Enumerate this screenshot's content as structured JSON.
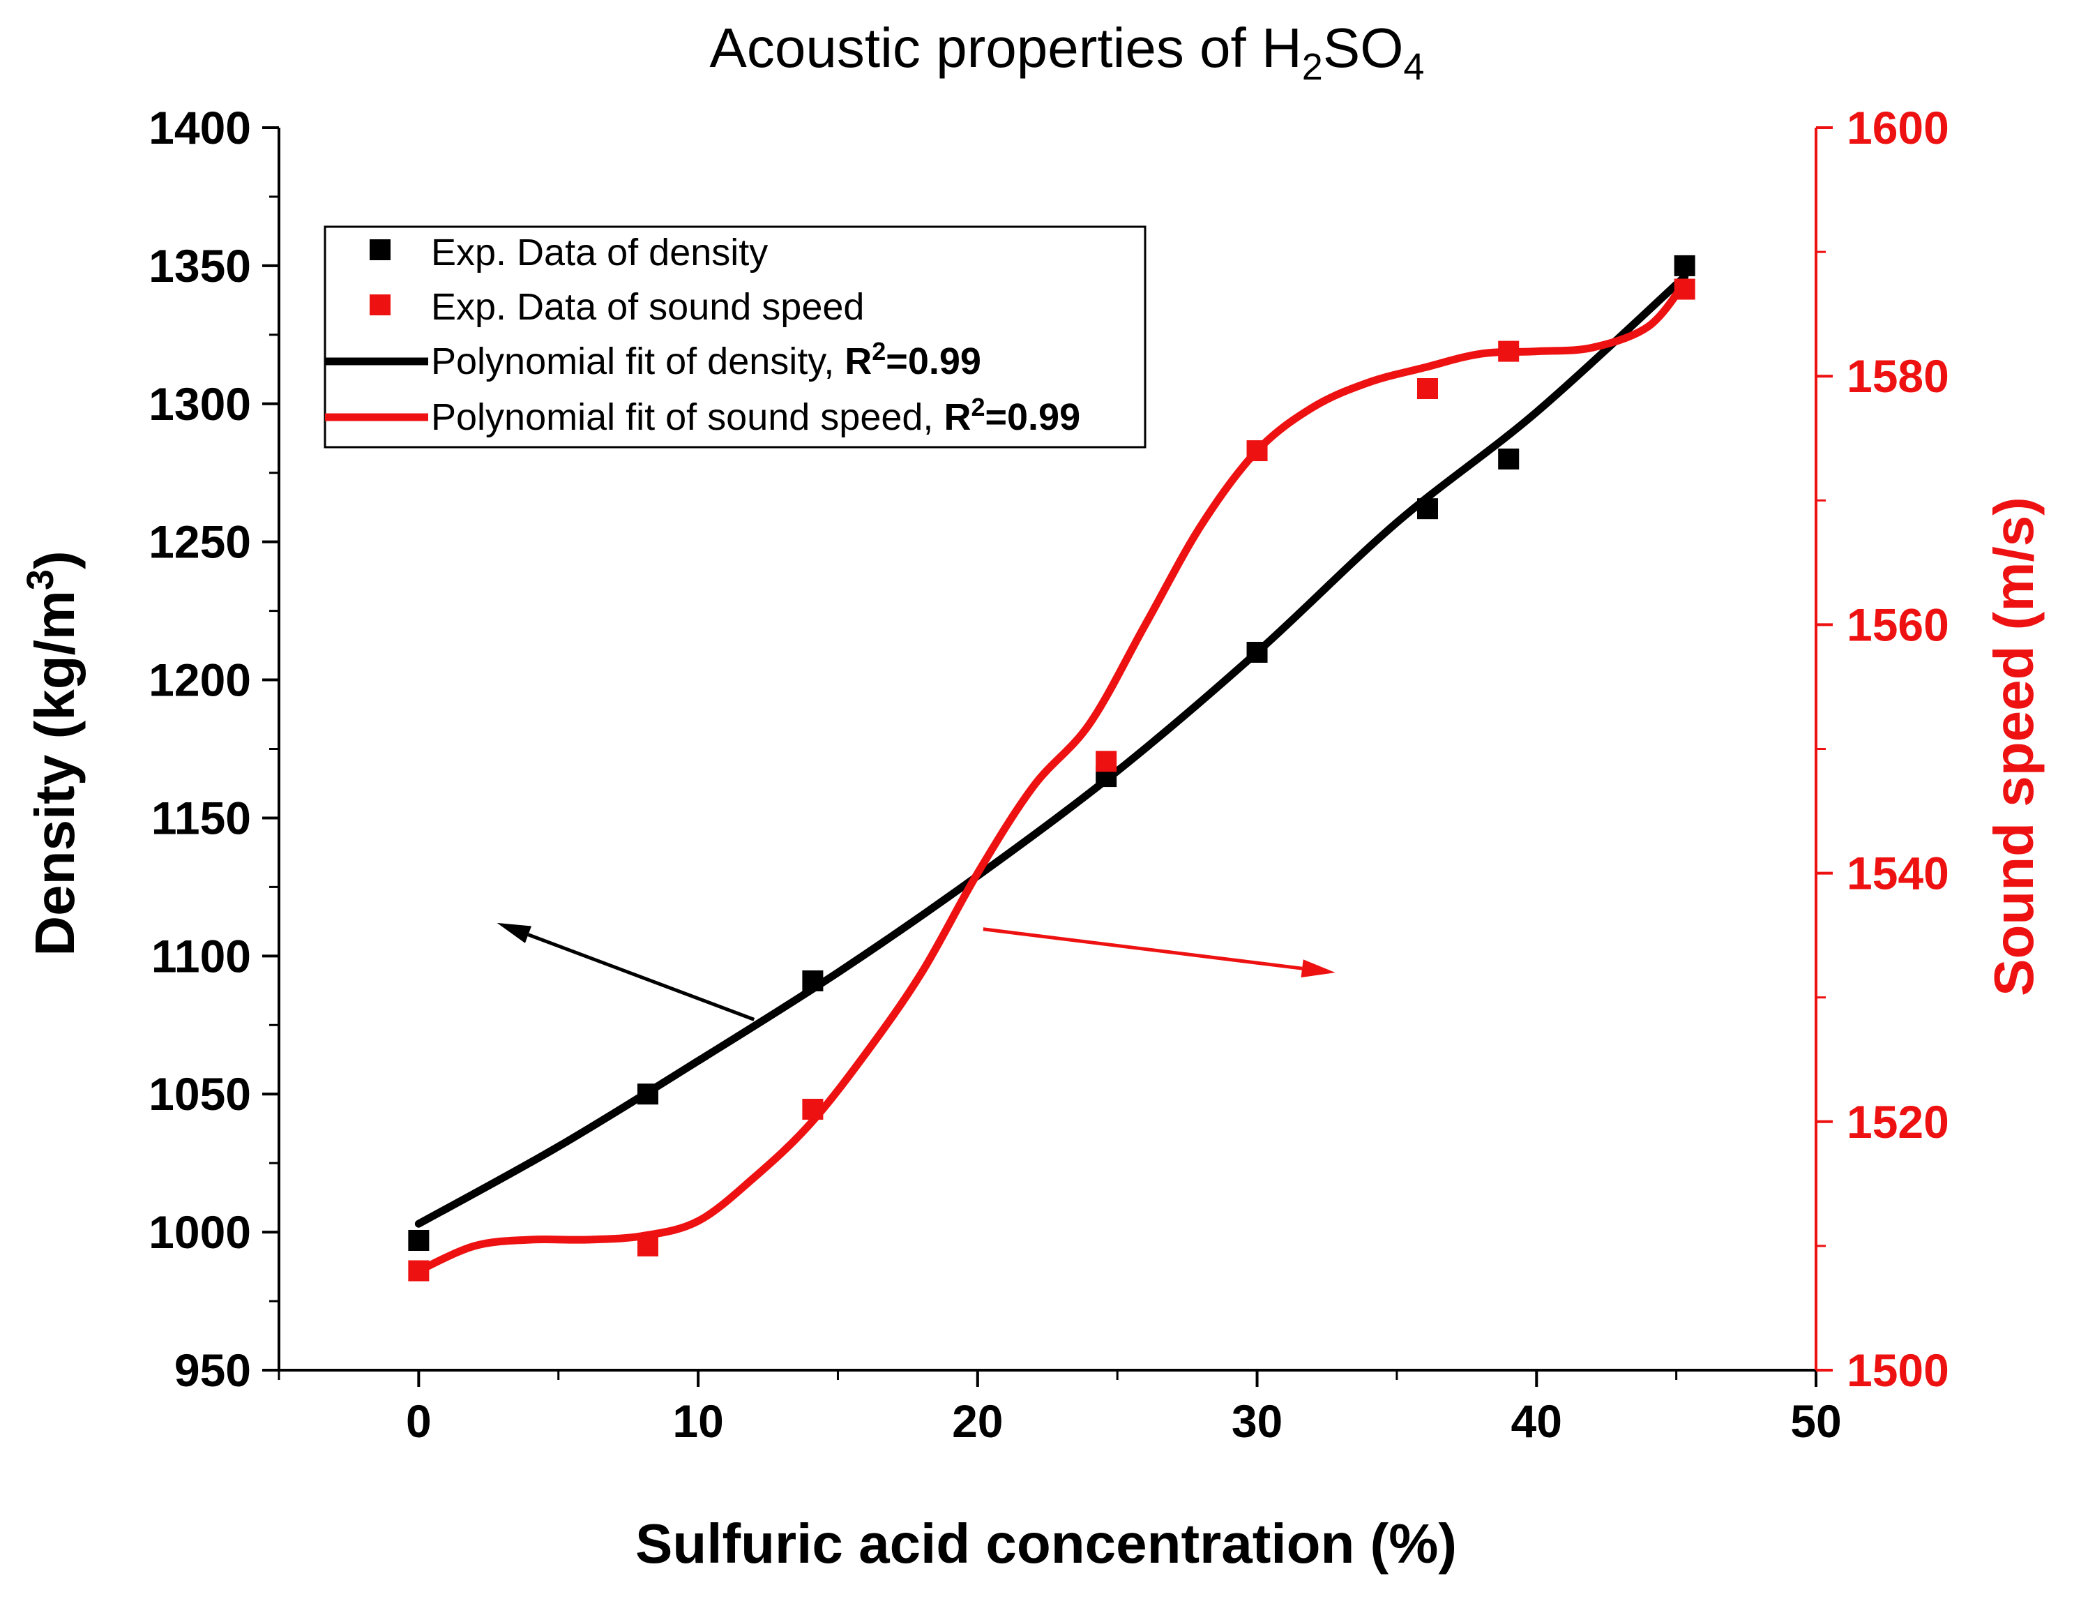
{
  "chart_data": {
    "type": "scatter",
    "title": {
      "main": "Acoustic properties of H",
      "sub1": "2",
      "mid": "SO",
      "sub2": "4"
    },
    "xlabel": "Sulfuric acid concentration (%)",
    "ylabel_left": {
      "main": "Density (kg/m",
      "sup": "3",
      "end": ")"
    },
    "ylabel_right": "Sound speed (m/s)",
    "xlim": [
      -5,
      50
    ],
    "ylim_left": [
      950,
      1400
    ],
    "ylim_right": [
      1500,
      1600
    ],
    "x_ticks": [
      "0",
      "10",
      "20",
      "30",
      "40",
      "50"
    ],
    "y_left_ticks": [
      "950",
      "1000",
      "1050",
      "1100",
      "1150",
      "1200",
      "1250",
      "1300",
      "1350",
      "1400"
    ],
    "y_right_ticks": [
      "1500",
      "1520",
      "1540",
      "1560",
      "1580",
      "1600"
    ],
    "grid": false,
    "legend_position": "top-left",
    "legend": [
      {
        "label": "Exp. Data of density",
        "bold": ""
      },
      {
        "label": "Exp. Data of sound speed",
        "bold": ""
      },
      {
        "label": "Polynomial fit of density, ",
        "bold_pre": "R",
        "bold_sup": "2",
        "bold_post": "=0.99"
      },
      {
        "label": "Polynomial fit of sound speed, ",
        "bold_pre": "R",
        "bold_sup": "2",
        "bold_post": "=0.99"
      }
    ],
    "colors": {
      "density": "#000000",
      "sound": "#ee1111"
    },
    "series": [
      {
        "name": "Exp. Data of density",
        "axis": "left",
        "kind": "scatter",
        "x": [
          0,
          8.2,
          14.1,
          24.6,
          30,
          36.1,
          39,
          45.3
        ],
        "y": [
          997,
          1050,
          1091,
          1165,
          1210,
          1262,
          1280,
          1350
        ]
      },
      {
        "name": "Exp. Data of sound speed",
        "axis": "right",
        "kind": "scatter",
        "x": [
          0,
          8.2,
          14.1,
          24.6,
          30,
          36.1,
          39,
          45.3
        ],
        "y": [
          1508,
          1510,
          1521,
          1549,
          1574,
          1579,
          1582,
          1587
        ]
      },
      {
        "name": "Polynomial fit of density, R2=0.99",
        "axis": "left",
        "kind": "line",
        "x": [
          0,
          5,
          10,
          15,
          20,
          25,
          30,
          35,
          40,
          45.3
        ],
        "y": [
          1003,
          1031,
          1062,
          1094,
          1129,
          1167,
          1210,
          1257,
          1297,
          1346
        ]
      },
      {
        "name": "Polynomial fit of sound speed, R2=0.99",
        "axis": "right",
        "kind": "line",
        "x": [
          0,
          2,
          4,
          6,
          8,
          10,
          12,
          14,
          16,
          18,
          20,
          22,
          24,
          26,
          28,
          30,
          32,
          34,
          36,
          38,
          40,
          42,
          44,
          45.3
        ],
        "y": [
          1508,
          1510,
          1510.5,
          1510.5,
          1510.8,
          1512,
          1515.5,
          1519.8,
          1525.5,
          1532,
          1540,
          1547,
          1552,
          1560,
          1568,
          1574,
          1577.5,
          1579.5,
          1580.7,
          1581.8,
          1582,
          1582.3,
          1584,
          1587.5
        ]
      }
    ],
    "annotations": [
      {
        "type": "arrow",
        "axis": "left",
        "color": "#000000",
        "from": [
          12,
          1077
        ],
        "to": [
          2.8,
          1112
        ]
      },
      {
        "type": "arrow",
        "axis": "right",
        "color": "#ee1111",
        "from": [
          20.2,
          1535.5
        ],
        "to": [
          32.8,
          1532
        ]
      }
    ]
  }
}
